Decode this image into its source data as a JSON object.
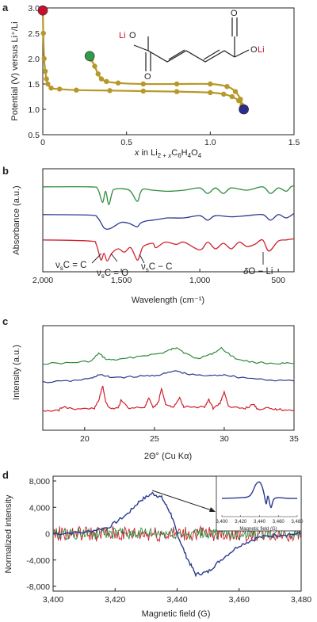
{
  "chart_data": [
    {
      "panel": "a",
      "type": "line",
      "xlabel_parts": {
        "x": "x",
        "in": " in Li",
        "sub1": "2 + ",
        "subx": "x",
        "rest": "C",
        "sub2": "6",
        "h": "H",
        "sub3": "4",
        "o": "O",
        "sub4": "4"
      },
      "ylabel": "Potential (V) versus Li⁺/Li",
      "xlim": [
        0,
        1.5
      ],
      "ylim": [
        0.5,
        3.0
      ],
      "xticks": [
        "0",
        "0.5",
        "1.0",
        "1.5"
      ],
      "yticks": [
        "0.5",
        "1.0",
        "1.5",
        "2.0",
        "2.5",
        "3.0"
      ],
      "color": "#b8982a",
      "series": [
        {
          "x": [
            0.0,
            0.003,
            0.008,
            0.015,
            0.022,
            0.03,
            0.05,
            0.1,
            0.2,
            0.4,
            0.6,
            0.8,
            1.0,
            1.08,
            1.13,
            1.17,
            1.19,
            1.2
          ],
          "y": [
            2.95,
            2.5,
            2.0,
            1.75,
            1.6,
            1.5,
            1.42,
            1.4,
            1.38,
            1.37,
            1.36,
            1.35,
            1.33,
            1.3,
            1.25,
            1.17,
            1.08,
            1.0
          ]
        },
        {
          "x": [
            1.2,
            1.18,
            1.15,
            1.1,
            1.0,
            0.8,
            0.6,
            0.45,
            0.38,
            0.35,
            0.33,
            0.31,
            0.29,
            0.28
          ],
          "y": [
            1.0,
            1.2,
            1.35,
            1.45,
            1.5,
            1.5,
            1.5,
            1.52,
            1.55,
            1.6,
            1.7,
            1.85,
            1.98,
            2.05
          ]
        }
      ],
      "markers": [
        {
          "x": 0.0,
          "y": 2.95,
          "color": "#c8102e"
        },
        {
          "x": 0.28,
          "y": 2.05,
          "color": "#2e9c4a"
        },
        {
          "x": 1.2,
          "y": 1.0,
          "color": "#2b2d8a"
        }
      ],
      "annotation_molecule": {
        "left_li": "Li",
        "left_o": "O",
        "right_o": "O",
        "right_li": "Li",
        "o_top": "O",
        "o_bottom": "O"
      }
    },
    {
      "panel": "b",
      "type": "line",
      "xlabel": "Wavelength (cm⁻¹)",
      "ylabel": "Absorbance (a.u.)",
      "xlim": [
        2000,
        400
      ],
      "xticks": [
        "2,000",
        "1,500",
        "1,000",
        "500"
      ],
      "series": [
        {
          "name": "green",
          "color": "#2e8b3e",
          "x": [
            2000,
            1700,
            1650,
            1620,
            1600,
            1580,
            1560,
            1540,
            1450,
            1400,
            1380,
            1360,
            1300,
            1200,
            1100,
            1000,
            950,
            900,
            850,
            800,
            700,
            600,
            550,
            500,
            450,
            420,
            400
          ],
          "y": [
            0.2,
            0.2,
            0.4,
            1.6,
            0.6,
            1.8,
            0.8,
            0.4,
            0.5,
            1.5,
            0.8,
            0.4,
            0.5,
            0.6,
            0.5,
            0.3,
            0.8,
            0.3,
            0.8,
            0.3,
            0.5,
            0.2,
            0.8,
            0.3,
            0.6,
            0.2,
            0.1
          ]
        },
        {
          "name": "blue",
          "color": "#2b3a8f",
          "x": [
            2000,
            1700,
            1650,
            1610,
            1580,
            1550,
            1500,
            1450,
            1400,
            1380,
            1350,
            1300,
            1250,
            1200,
            1100,
            1000,
            950,
            900,
            800,
            700,
            600,
            550,
            500,
            450,
            400
          ],
          "y": [
            0.2,
            0.25,
            0.5,
            1.4,
            1.5,
            1.3,
            0.9,
            1.0,
            1.3,
            1.0,
            0.8,
            0.7,
            0.6,
            0.5,
            0.5,
            0.3,
            0.7,
            0.3,
            0.4,
            0.3,
            0.2,
            0.7,
            0.2,
            0.5,
            0.1
          ]
        },
        {
          "name": "red",
          "color": "#d0202e",
          "x": [
            2000,
            1700,
            1660,
            1630,
            1610,
            1590,
            1560,
            1520,
            1480,
            1440,
            1400,
            1380,
            1360,
            1300,
            1280,
            1220,
            1150,
            1100,
            1000,
            950,
            900,
            850,
            800,
            750,
            700,
            650,
            600,
            560,
            500,
            450,
            400
          ],
          "y": [
            0.2,
            0.3,
            0.6,
            2.0,
            1.4,
            2.1,
            1.4,
            1.0,
            1.3,
            0.9,
            2.0,
            1.5,
            0.8,
            0.5,
            0.9,
            0.4,
            0.6,
            0.4,
            1.1,
            0.4,
            1.0,
            0.5,
            1.0,
            0.4,
            0.8,
            0.6,
            0.2,
            1.2,
            0.3,
            0.2,
            0.1
          ]
        }
      ],
      "annotations": [
        {
          "nu": "ν",
          "s": "s",
          "text": "C = C"
        },
        {
          "nu": "ν",
          "s": "s",
          "text": "C = O"
        },
        {
          "nu": "ν",
          "s": "s",
          "text": "C − C"
        },
        {
          "nu": "δ",
          "s": "",
          "text": "O − Li"
        }
      ]
    },
    {
      "panel": "c",
      "type": "line",
      "xlabel": "2Θ° (Cu Kα)",
      "ylabel": "Intensity (a.u.)",
      "xlim": [
        17,
        35
      ],
      "xticks": [
        "20",
        "25",
        "30",
        "35"
      ],
      "xtick_values": [
        20,
        25,
        30,
        35
      ],
      "series": [
        {
          "name": "green",
          "color": "#2e8b3e",
          "x": [
            17,
            19,
            20.5,
            21,
            21.6,
            22.5,
            24,
            25.5,
            26.2,
            26.6,
            27.2,
            28,
            29,
            29.8,
            30.8,
            32,
            34,
            35
          ],
          "y": [
            0.2,
            0.25,
            0.4,
            1.0,
            0.5,
            0.5,
            0.8,
            1.0,
            1.3,
            1.5,
            1.0,
            0.6,
            0.9,
            1.4,
            0.6,
            0.3,
            0.2,
            0.2
          ]
        },
        {
          "name": "blue",
          "color": "#2b3a8f",
          "x": [
            17,
            19,
            20.5,
            21,
            21.8,
            23,
            24.5,
            25.5,
            26.5,
            27.5,
            29,
            30,
            31,
            33,
            35
          ],
          "y": [
            0.1,
            0.2,
            0.4,
            0.7,
            0.5,
            0.5,
            0.6,
            0.7,
            1.0,
            0.7,
            0.6,
            0.7,
            0.5,
            0.3,
            0.2
          ]
        },
        {
          "name": "red",
          "color": "#d0202e",
          "x": [
            17,
            18.1,
            18.4,
            19.5,
            20.7,
            21.0,
            21.3,
            21.5,
            21.8,
            22.4,
            22.6,
            23.2,
            24.3,
            24.6,
            24.9,
            25.3,
            25.5,
            25.8,
            26.4,
            26.8,
            27.1,
            28.6,
            28.9,
            29.2,
            29.7,
            30.0,
            30.3,
            31.5,
            32.1,
            32.4,
            33.2,
            33.5,
            34,
            35
          ],
          "y": [
            0.1,
            0.1,
            0.4,
            0.2,
            0.3,
            0.9,
            2.1,
            0.8,
            0.3,
            0.3,
            0.9,
            0.3,
            0.4,
            1.1,
            0.3,
            0.8,
            1.9,
            0.6,
            0.4,
            1.1,
            0.4,
            0.4,
            1.0,
            0.3,
            0.7,
            1.6,
            0.4,
            0.3,
            0.6,
            0.2,
            0.4,
            0.2,
            0.2,
            0.1
          ]
        }
      ]
    },
    {
      "panel": "d",
      "type": "line",
      "xlabel": "Magnetic field (G)",
      "ylabel": "Normalized intensity",
      "xlim": [
        3400,
        3480
      ],
      "ylim": [
        -8000,
        8000
      ],
      "xticks": [
        "3,400",
        "3,420",
        "3,440",
        "3,460",
        "3,480"
      ],
      "xtick_values": [
        3400,
        3420,
        3440,
        3460,
        3480
      ],
      "yticks": [
        "8,000",
        "4,000",
        "0",
        "-4,000",
        "-8,000"
      ],
      "ytick_values": [
        8000,
        4000,
        0,
        -4000,
        -8000
      ],
      "series": [
        {
          "name": "blue",
          "color": "#2b3a8f",
          "x": [
            3400,
            3410,
            3418,
            3424,
            3428,
            3432,
            3435,
            3438,
            3440,
            3443,
            3446,
            3450,
            3454,
            3460,
            3466,
            3472,
            3480
          ],
          "y": [
            0,
            200,
            1000,
            3000,
            5000,
            6100,
            5500,
            3000,
            0,
            -3500,
            -6200,
            -5800,
            -4000,
            -1800,
            -600,
            -200,
            0
          ]
        },
        {
          "name": "red",
          "color": "#d0202e",
          "noise": 1200
        },
        {
          "name": "green",
          "color": "#2e8b3e",
          "noise": 900
        }
      ],
      "inset": {
        "xlabel": "Magnetic field (G)",
        "xticks": [
          "3,400",
          "3,420",
          "3,440",
          "3,460",
          "3,480"
        ]
      }
    }
  ]
}
